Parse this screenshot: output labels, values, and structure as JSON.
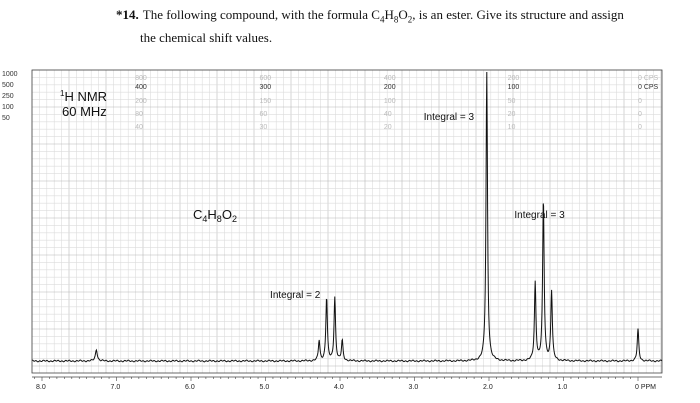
{
  "question": {
    "number": "*14.",
    "text_line1_a": "The following compound, with the formula C",
    "text_line1_b": "H",
    "text_line1_c": "O",
    "text_line1_d": ", is an ester. Give its structure and assign",
    "sub_c": "4",
    "sub_h": "8",
    "sub_o": "2",
    "text_line2": "the chemical shift values."
  },
  "chart_data": {
    "type": "line",
    "title": "",
    "spectrum_label": "H NMR",
    "spectrum_label_superscript": "1",
    "frequency_label": "60 MHz",
    "formula": {
      "c": "C",
      "c_sub": "4",
      "h": "H",
      "h_sub": "8",
      "o": "O",
      "o_sub": "2"
    },
    "x_axis": {
      "unit": "PPM",
      "range": [
        8.3,
        -0.1
      ],
      "reversed": true,
      "ticks": [
        8.0,
        7.0,
        6.0,
        5.0,
        4.0,
        3.0,
        2.0,
        1.0,
        0
      ],
      "tick_labels": [
        "8.0",
        "7.0",
        "6.0",
        "5.0",
        "4.0",
        "3.0",
        "2.0",
        "1.0",
        "0 PPM"
      ]
    },
    "cps_scale": {
      "left_labels": [
        "1000",
        "500",
        "250",
        "100",
        "50"
      ],
      "top_ticks_ppm": [
        6.67,
        5.0,
        3.33,
        1.67,
        0
      ],
      "top_labels": [
        "400",
        "300",
        "200",
        "100",
        "0 CPS"
      ],
      "faint_labels_at_ppm": [
        {
          "ppm": 6.67,
          "labels": [
            "800",
            "200",
            "80",
            "40"
          ]
        },
        {
          "ppm": 5.0,
          "labels": [
            "600",
            "150",
            "60",
            "30"
          ]
        },
        {
          "ppm": 3.33,
          "labels": [
            "400",
            "100",
            "40",
            "20"
          ]
        },
        {
          "ppm": 1.67,
          "labels": [
            "200",
            "50",
            "20",
            "10"
          ]
        },
        {
          "ppm": 0,
          "labels": [
            "0 CPS",
            "0",
            "0",
            "0"
          ]
        }
      ]
    },
    "grid": true,
    "peaks": [
      {
        "shift_ppm": 7.27,
        "height": 0.04,
        "width": 0.015
      },
      {
        "shift_ppm": 4.28,
        "height": 0.07,
        "width": 0.012
      },
      {
        "shift_ppm": 4.18,
        "height": 0.22,
        "width": 0.012
      },
      {
        "shift_ppm": 4.07,
        "height": 0.22,
        "width": 0.012
      },
      {
        "shift_ppm": 3.97,
        "height": 0.07,
        "width": 0.012
      },
      {
        "shift_ppm": 2.03,
        "height": 1.0,
        "width": 0.012
      },
      {
        "shift_ppm": 1.38,
        "height": 0.27,
        "width": 0.012
      },
      {
        "shift_ppm": 1.27,
        "height": 0.56,
        "width": 0.012
      },
      {
        "shift_ppm": 1.16,
        "height": 0.24,
        "width": 0.012
      },
      {
        "shift_ppm": 0.0,
        "height": 0.11,
        "width": 0.012
      }
    ],
    "annotations": [
      {
        "text": "Integral = 3",
        "near_ppm": 2.03
      },
      {
        "text": "Integral = 3",
        "near_ppm": 1.27
      },
      {
        "text": "Integral = 2",
        "near_ppm": 4.12
      }
    ]
  }
}
